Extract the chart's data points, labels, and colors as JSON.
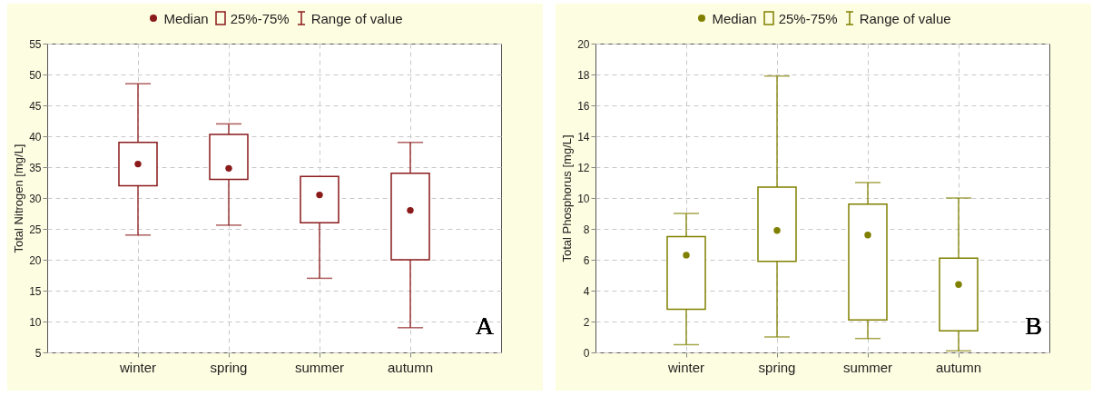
{
  "chart_data": [
    {
      "type": "box",
      "ylabel": "Total Nitrogen [mg/L]",
      "categories": [
        "winter",
        "spring",
        "summer",
        "autumn"
      ],
      "color": "#8b1a1a",
      "ylim": [
        5,
        55
      ],
      "yticks": [
        5,
        10,
        15,
        20,
        25,
        30,
        35,
        40,
        45,
        50,
        55
      ],
      "grid": true,
      "annotations": [
        "Median",
        "25%-75%",
        "Range of value",
        "A"
      ],
      "boxes": [
        {
          "low": 24,
          "q1": 32,
          "median": 35.5,
          "q3": 39,
          "high": 48.5
        },
        {
          "low": 25.6,
          "q1": 33,
          "median": 34.8,
          "q3": 40.3,
          "high": 42
        },
        {
          "low": 17,
          "q1": 26,
          "median": 30.5,
          "q3": 33.5,
          "high": 33.5
        },
        {
          "low": 9,
          "q1": 20,
          "median": 28,
          "q3": 34,
          "high": 39
        }
      ]
    },
    {
      "type": "box",
      "ylabel": "Total Phosphorus [mg/L]",
      "categories": [
        "winter",
        "spring",
        "summer",
        "autumn"
      ],
      "color": "#808000",
      "ylim": [
        0,
        20
      ],
      "yticks": [
        0,
        2,
        4,
        6,
        8,
        10,
        12,
        14,
        16,
        18,
        20
      ],
      "grid": true,
      "annotations": [
        "Median",
        "25%-75%",
        "Range of value",
        "B"
      ],
      "boxes": [
        {
          "low": 0.5,
          "q1": 2.8,
          "median": 6.3,
          "q3": 7.5,
          "high": 9
        },
        {
          "low": 1,
          "q1": 5.9,
          "median": 7.9,
          "q3": 10.7,
          "high": 17.9
        },
        {
          "low": 0.9,
          "q1": 2.1,
          "median": 7.6,
          "q3": 9.6,
          "high": 11
        },
        {
          "low": 0.1,
          "q1": 1.4,
          "median": 4.4,
          "q3": 6.1,
          "high": 10
        }
      ]
    }
  ]
}
